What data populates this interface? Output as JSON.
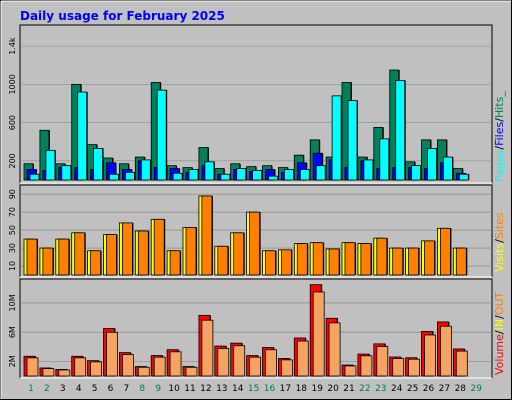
{
  "title": "Daily usage for February 2025",
  "colors": {
    "background": "#c0c0c0",
    "panel": "#c0c0c0",
    "title": "#0000ff",
    "hits": "#00805c",
    "files": "#0000ff",
    "pages": "#00ffff",
    "visits": "#ffff00",
    "sites": "#ff8000",
    "volume_in": "#ff0000",
    "volume_out": "#ff8000",
    "weekend_day": "#008040",
    "weekday": "#0000ff"
  },
  "legends": {
    "top": {
      "pages": "Pages",
      "sep1": "/",
      "files": "Files",
      "sep2": "/",
      "hits": "Hits_"
    },
    "middle": {
      "visits": "Visits",
      "sep1": "/",
      "sites": "Sites"
    },
    "bottom": {
      "volume": "Volume",
      "sep1": "/",
      "in": "IN",
      "sep2": "/",
      "out": "OUT"
    }
  },
  "chart_data": [
    {
      "type": "bar",
      "name": "hits-files-pages",
      "categories": [
        "1",
        "2",
        "3",
        "4",
        "5",
        "6",
        "7",
        "8",
        "9",
        "10",
        "11",
        "12",
        "13",
        "14",
        "15",
        "16",
        "17",
        "18",
        "19",
        "20",
        "21",
        "22",
        "23",
        "24",
        "25",
        "26",
        "27",
        "28",
        "29"
      ],
      "weekend_days": [
        "1",
        "2",
        "8",
        "9",
        "15",
        "16",
        "22",
        "23",
        "29"
      ],
      "y_ticks": [
        "200",
        "600",
        "1000",
        "1.4k"
      ],
      "ylim": [
        0,
        1600
      ],
      "grid": true,
      "series": [
        {
          "name": "Hits",
          "values": [
            170,
            520,
            170,
            1000,
            370,
            230,
            170,
            240,
            1020,
            150,
            130,
            340,
            120,
            170,
            140,
            150,
            130,
            260,
            420,
            240,
            1020,
            240,
            550,
            1150,
            190,
            420,
            420,
            120,
            0
          ]
        },
        {
          "name": "Files",
          "values": [
            110,
            100,
            130,
            130,
            110,
            180,
            110,
            200,
            130,
            120,
            80,
            150,
            60,
            110,
            90,
            110,
            80,
            180,
            280,
            210,
            130,
            200,
            120,
            130,
            130,
            120,
            180,
            70,
            0
          ]
        },
        {
          "name": "Pages",
          "values": [
            60,
            310,
            150,
            920,
            330,
            60,
            80,
            210,
            940,
            70,
            110,
            190,
            60,
            120,
            100,
            40,
            110,
            110,
            150,
            880,
            830,
            210,
            430,
            1040,
            150,
            330,
            240,
            60,
            0
          ]
        }
      ]
    },
    {
      "type": "bar",
      "name": "visits-sites",
      "categories": [
        "1",
        "2",
        "3",
        "4",
        "5",
        "6",
        "7",
        "8",
        "9",
        "10",
        "11",
        "12",
        "13",
        "14",
        "15",
        "16",
        "17",
        "18",
        "19",
        "20",
        "21",
        "22",
        "23",
        "24",
        "25",
        "26",
        "27",
        "28",
        "29"
      ],
      "y_ticks": [
        "10",
        "30",
        "50",
        "70",
        "90"
      ],
      "ylim": [
        0,
        98
      ],
      "grid": true,
      "series": [
        {
          "name": "Visits",
          "values": [
            40,
            30,
            40,
            47,
            27,
            45,
            58,
            49,
            62,
            27,
            53,
            88,
            32,
            47,
            70,
            27,
            28,
            35,
            36,
            29,
            36,
            35,
            41,
            30,
            30,
            38,
            52,
            30,
            0
          ]
        },
        {
          "name": "Sites",
          "values": [
            40,
            30,
            40,
            47,
            27,
            45,
            58,
            49,
            62,
            27,
            53,
            88,
            32,
            47,
            70,
            27,
            28,
            35,
            36,
            29,
            36,
            35,
            41,
            30,
            30,
            38,
            52,
            30,
            0
          ]
        }
      ]
    },
    {
      "type": "bar",
      "name": "volume",
      "categories": [
        "1",
        "2",
        "3",
        "4",
        "5",
        "6",
        "7",
        "8",
        "9",
        "10",
        "11",
        "12",
        "13",
        "14",
        "15",
        "16",
        "17",
        "18",
        "19",
        "20",
        "21",
        "22",
        "23",
        "24",
        "25",
        "26",
        "27",
        "28",
        "29"
      ],
      "y_ticks": [
        "2M",
        "6M",
        "10M"
      ],
      "ylim": [
        0,
        13000000
      ],
      "grid": true,
      "series": [
        {
          "name": "Volume",
          "values": [
            2700000,
            1100000,
            900000,
            2700000,
            2100000,
            6500000,
            3200000,
            1300000,
            2800000,
            3600000,
            1300000,
            8300000,
            4100000,
            4500000,
            2800000,
            3900000,
            2400000,
            5200000,
            12500000,
            7900000,
            1500000,
            3000000,
            4400000,
            2600000,
            2500000,
            6100000,
            7400000,
            3700000,
            0
          ]
        }
      ]
    }
  ]
}
